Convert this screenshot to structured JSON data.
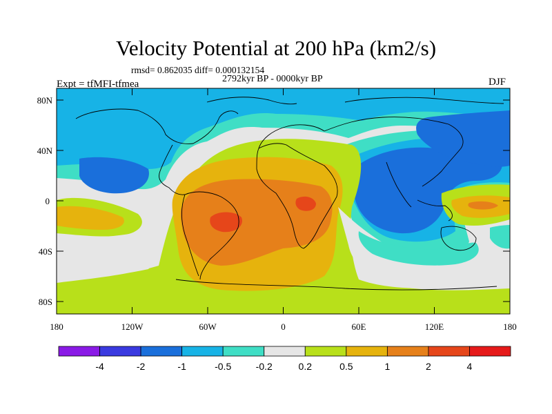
{
  "title": "Velocity Potential at 200 hPa (km2/s)",
  "stats": "rmsd= 0.862035 diff= 0.000132154",
  "period": "2792kyr BP - 0000kyr BP",
  "experiment": "Expt = tfMFI-tfmea",
  "season": "DJF",
  "lat_labels": [
    "80N",
    "40N",
    "0",
    "40S",
    "80S"
  ],
  "lon_labels": [
    "180",
    "120W",
    "60W",
    "0",
    "60E",
    "120E",
    "180"
  ],
  "colorbar": {
    "levels": [
      "-4",
      "-2",
      "-1",
      "-0.5",
      "-0.2",
      "0.2",
      "0.5",
      "1",
      "2",
      "4"
    ],
    "colors": [
      "#8a1ae6",
      "#3a3ae0",
      "#1a6fdb",
      "#17b3e6",
      "#3fdec5",
      "#e6e6e6",
      "#b8e01a",
      "#e6b30d",
      "#e6801a",
      "#e6461a",
      "#e61a1a"
    ]
  },
  "field_colors": {
    "neg_strong": "#1a6fdb",
    "neg_mid": "#17b3e6",
    "neg_weak": "#3fdec5",
    "neutral": "#e6e6e6",
    "pos_weak": "#b8e01a",
    "pos_mid": "#e6b30d",
    "pos_strong": "#e6801a",
    "pos_max": "#e6461a"
  }
}
